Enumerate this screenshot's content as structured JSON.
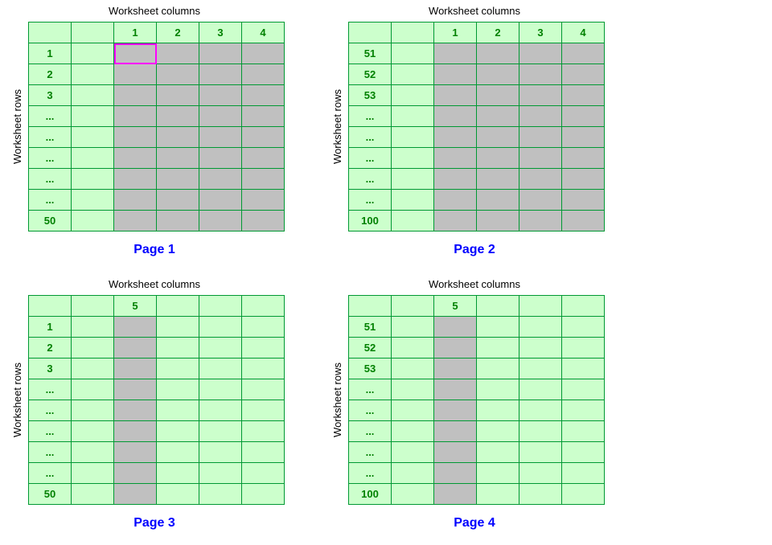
{
  "colors": {
    "cell_bg": "#ccffcc",
    "filled_bg": "#c0c0c0",
    "grid_border": "#009933",
    "number_text": "#008000",
    "caption_text": "#0000ff",
    "highlight_border": "#ff00ff",
    "title_text": "#000000"
  },
  "panels": [
    {
      "top_label": "Worksheet columns",
      "left_label": "Worksheet rows",
      "caption": "Page 1",
      "col_headers": [
        "",
        "",
        "1",
        "2",
        "3",
        "4"
      ],
      "row_headers": [
        "1",
        "2",
        "3",
        "...",
        "...",
        "...",
        "...",
        "...",
        "50"
      ],
      "gray_cols": [
        2,
        3,
        4,
        5
      ],
      "highlight_cell": {
        "row": 0,
        "col": 2
      }
    },
    {
      "top_label": "Worksheet columns",
      "left_label": "Worksheet rows",
      "caption": "Page 2",
      "col_headers": [
        "",
        "",
        "1",
        "2",
        "3",
        "4"
      ],
      "row_headers": [
        "51",
        "52",
        "53",
        "...",
        "...",
        "...",
        "...",
        "...",
        "100"
      ],
      "gray_cols": [
        2,
        3,
        4,
        5
      ],
      "highlight_cell": null
    },
    {
      "top_label": "Worksheet columns",
      "left_label": "Worksheet rows",
      "caption": "Page 3",
      "col_headers": [
        "",
        "",
        "5",
        "",
        "",
        ""
      ],
      "row_headers": [
        "1",
        "2",
        "3",
        "...",
        "...",
        "...",
        "...",
        "...",
        "50"
      ],
      "gray_cols": [
        2
      ],
      "highlight_cell": null
    },
    {
      "top_label": "Worksheet columns",
      "left_label": "Worksheet rows",
      "caption": "Page 4",
      "col_headers": [
        "",
        "",
        "5",
        "",
        "",
        ""
      ],
      "row_headers": [
        "51",
        "52",
        "53",
        "...",
        "...",
        "...",
        "...",
        "...",
        "100"
      ],
      "gray_cols": [
        2
      ],
      "highlight_cell": null
    }
  ]
}
